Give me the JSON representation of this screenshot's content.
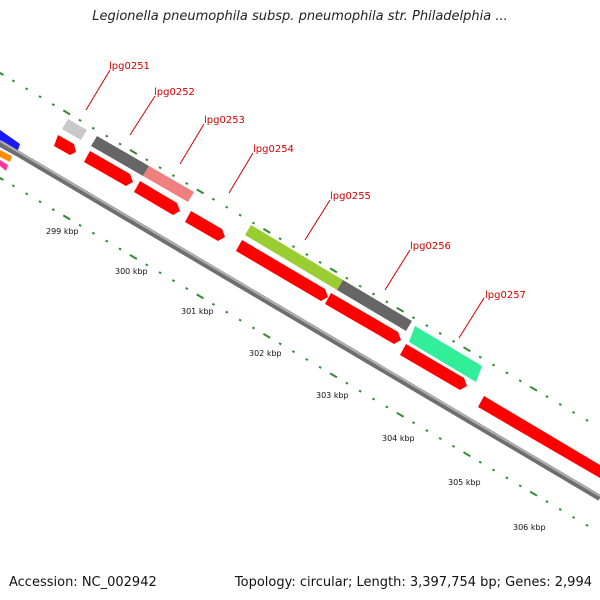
{
  "title": "Legionella pneumophila subsp. pneumophila str. Philadelphia ...",
  "footer": {
    "accession": "Accession: NC_002942",
    "summary": "Topology: circular; Length: 3,397,754 bp; Genes: 2,994"
  },
  "colors": {
    "backbone": "#8a8a8a",
    "cds": "#ff0000",
    "tick": "#2e8b2e",
    "label": "#d00000"
  },
  "kbp_labels": [
    "299 kbp",
    "300 kbp",
    "301 kbp",
    "302 kbp",
    "303 kbp",
    "304 kbp",
    "305 kbp",
    "306 kbp"
  ],
  "outer_genes": [
    {
      "name": "lpg0251",
      "color": "#c8c8c8"
    },
    {
      "name": "lpg0252",
      "color": "#666666"
    },
    {
      "name": "lpg0253",
      "color": "#f08080"
    },
    {
      "name": "lpg0254",
      "color": "#ff0000"
    },
    {
      "name": "lpg0255",
      "color": "#9acd32"
    },
    {
      "name": "lpg0256",
      "color": "#666666"
    },
    {
      "name": "lpg0257",
      "color": "#33ee99"
    }
  ]
}
